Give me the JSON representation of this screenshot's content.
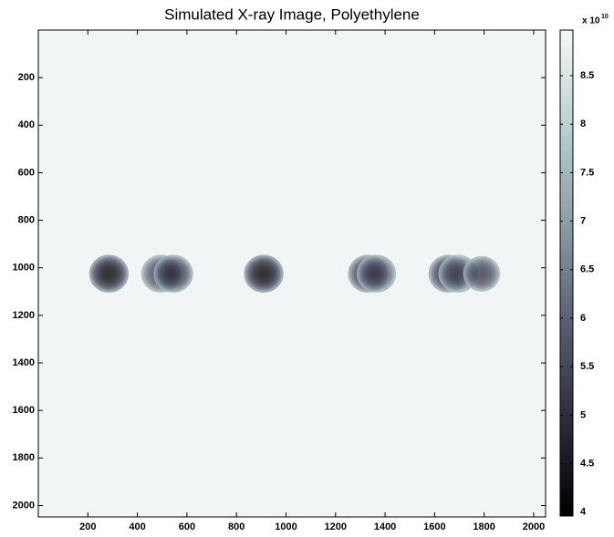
{
  "chart_data": {
    "type": "image",
    "title": "Simulated X-ray Image, Polyethylene",
    "xlim": [
      0,
      2048
    ],
    "ylim": [
      2048,
      0
    ],
    "xticks": [
      200,
      400,
      600,
      800,
      1000,
      1200,
      1400,
      1600,
      1800,
      2000
    ],
    "yticks": [
      200,
      400,
      600,
      800,
      1000,
      1200,
      1400,
      1600,
      1800,
      2000
    ],
    "background": 8.9,
    "objects": [
      {
        "x": 285,
        "y": 1025,
        "r": 80,
        "min": 4
      },
      {
        "x": 495,
        "y": 1025,
        "r": 80,
        "min": 5.2
      },
      {
        "x": 545,
        "y": 1025,
        "r": 80,
        "min": 4.8
      },
      {
        "x": 910,
        "y": 1025,
        "r": 80,
        "min": 4
      },
      {
        "x": 1330,
        "y": 1025,
        "r": 80,
        "min": 4.6
      },
      {
        "x": 1365,
        "y": 1025,
        "r": 80,
        "min": 5.2
      },
      {
        "x": 1655,
        "y": 1025,
        "r": 80,
        "min": 4.6
      },
      {
        "x": 1695,
        "y": 1025,
        "r": 80,
        "min": 5.4
      },
      {
        "x": 1790,
        "y": 1025,
        "r": 75,
        "min": 5.2
      }
    ],
    "colorbar": {
      "clim": [
        3.96,
        8.97
      ],
      "ticks": [
        4,
        4.5,
        5,
        5.5,
        6,
        6.5,
        7,
        7.5,
        8,
        8.5
      ],
      "multiplier": "x 10",
      "exponent": "10"
    },
    "colormap": [
      "#000000",
      "#2c2c3c",
      "#5a5e74",
      "#8a9ca4",
      "#b8d0d0",
      "#f6f8f8"
    ]
  }
}
